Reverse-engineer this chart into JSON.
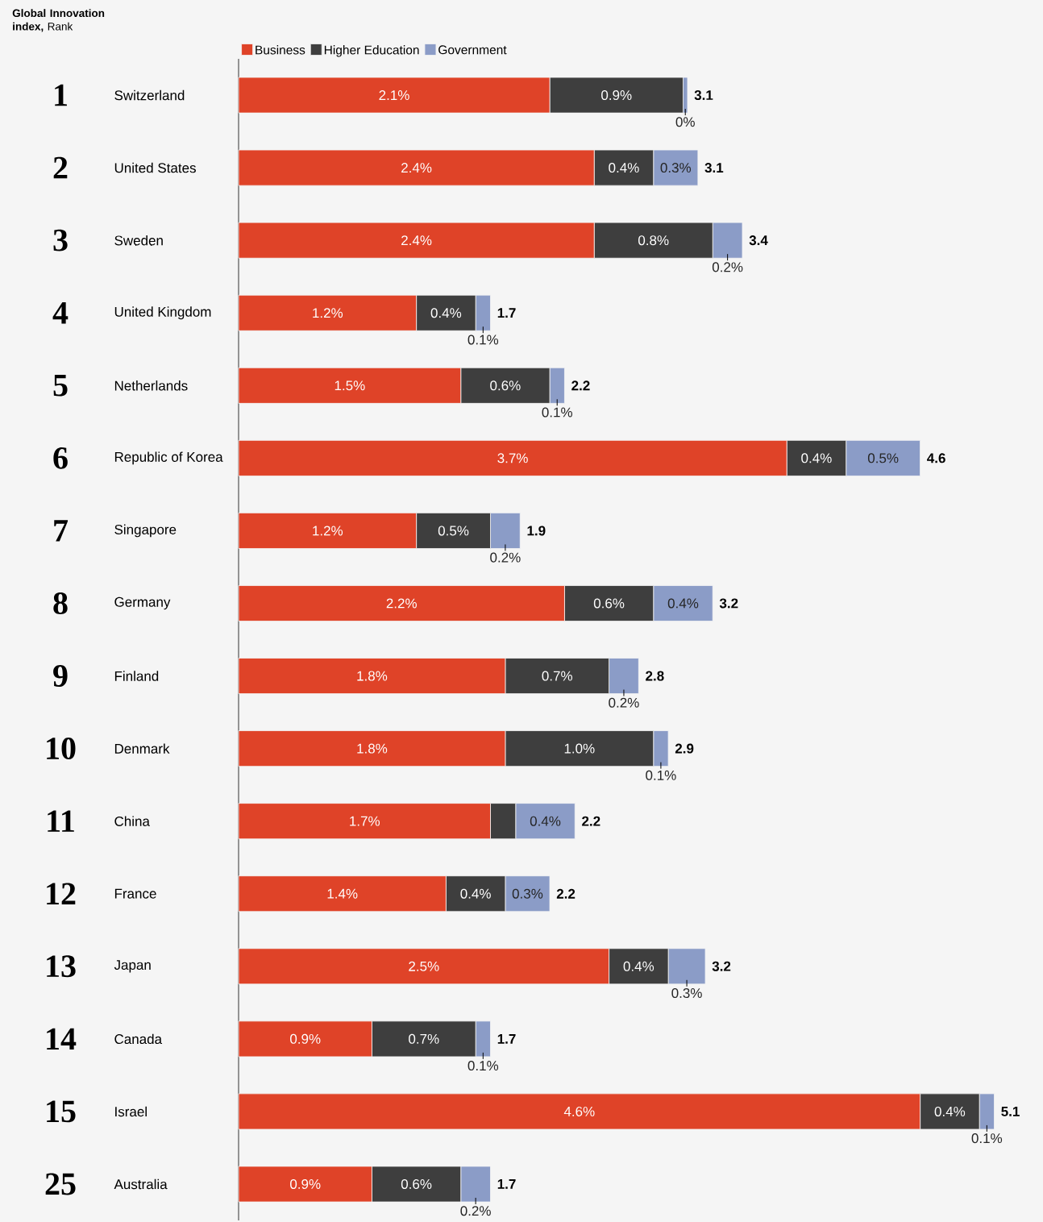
{
  "chart_data": {
    "type": "bar",
    "orientation": "horizontal",
    "stacked": true,
    "title": "**Global Innovation index,** Rank",
    "categories": [
      "Switzerland",
      "United States",
      "Sweden",
      "United Kingdom",
      "Netherlands",
      "Republic of Korea",
      "Singapore",
      "Germany",
      "Finland",
      "Denmark",
      "China",
      "France",
      "Japan",
      "Canada",
      "Israel",
      "Australia"
    ],
    "series": [
      {
        "name": "Business",
        "color": "#df4328",
        "values": [
          2.1,
          2.4,
          2.4,
          1.2,
          1.5,
          3.7,
          1.2,
          2.2,
          1.8,
          1.8,
          1.7,
          1.4,
          2.5,
          0.9,
          4.6,
          0.9
        ],
        "value_labels": [
          "2.1%",
          "2.4%",
          "2.4%",
          "1.2%",
          "1.5%",
          "3.7%",
          "1.2%",
          "2.2%",
          "1.8%",
          "1.8%",
          "1.7%",
          "1.4%",
          "2.5%",
          "0.9%",
          "4.6%",
          "0.9%"
        ]
      },
      {
        "name": "Higher Education",
        "color": "#3e3e3e",
        "values": [
          0.9,
          0.4,
          0.8,
          0.4,
          0.6,
          0.4,
          0.5,
          0.6,
          0.7,
          1.0,
          0.17,
          0.4,
          0.4,
          0.7,
          0.4,
          0.6
        ],
        "value_labels": [
          "0.9%",
          "0.4%",
          "0.8%",
          "0.4%",
          "0.6%",
          "0.4%",
          "0.5%",
          "0.6%",
          "0.7%",
          "1.0%",
          null,
          "0.4%",
          "0.4%",
          "0.7%",
          "0.4%",
          "0.6%"
        ]
      },
      {
        "name": "Government",
        "color": "#8b9cc7",
        "values": [
          0.03,
          0.3,
          0.2,
          0.1,
          0.1,
          0.5,
          0.2,
          0.4,
          0.2,
          0.1,
          0.4,
          0.3,
          0.25,
          0.1,
          0.1,
          0.2
        ],
        "value_labels": [
          "0%",
          "0.3%",
          "0.2%",
          "0.1%",
          "0.1%",
          "0.5%",
          "0.2%",
          "0.4%",
          "0.2%",
          "0.1%",
          "0.4%",
          "0.3%",
          "0.3%",
          "0.1%",
          "0.1%",
          "0.2%"
        ]
      }
    ],
    "totals": [
      "3.1",
      "3.1",
      "3.4",
      "1.7",
      "2.2",
      "4.6",
      "1.9",
      "3.2",
      "2.8",
      "2.9",
      "2.2",
      "2.2",
      "3.2",
      "1.7",
      "5.1",
      "1.7"
    ],
    "tick_labels": "y",
    "legend": "top left",
    "annotations": [
      "1",
      "2",
      "3",
      "4",
      "5",
      "6",
      "7",
      "8",
      "9",
      "10",
      "11",
      "12",
      "13",
      "14",
      "15",
      "25"
    ]
  }
}
